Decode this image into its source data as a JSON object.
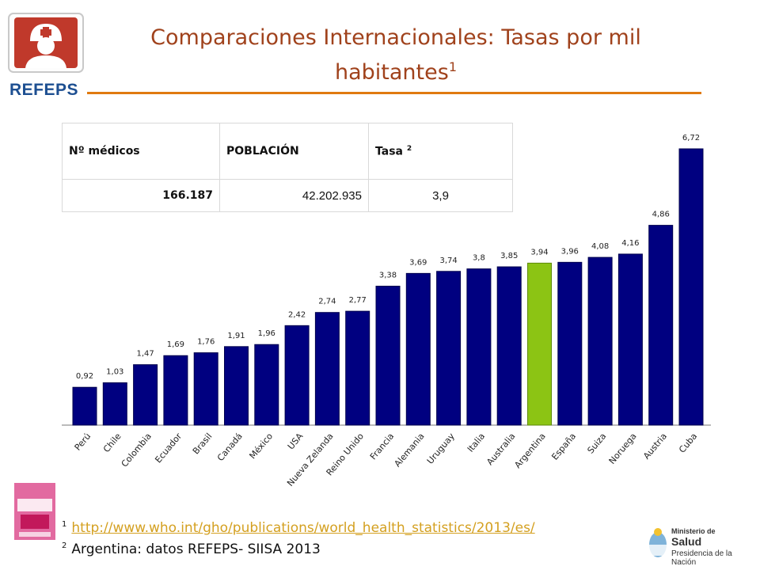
{
  "logo": {
    "text": "REFEPS"
  },
  "title": {
    "text": "Comparaciones Internacionales: Tasas por mil habitantes",
    "sup": "1"
  },
  "table": {
    "headers": [
      "Nº médicos",
      "POBLACIÓN",
      "Tasa"
    ],
    "header_sup": "2",
    "row": [
      "166.187",
      "42.202.935",
      "3,9"
    ]
  },
  "colors": {
    "bar": "#000080",
    "highlight": "#8cc414",
    "title": "#a0421c",
    "rule": "#e07a10"
  },
  "chart_data": {
    "type": "bar",
    "categories": [
      "Perú",
      "Chile",
      "Colombia",
      "Ecuador",
      "Brasil",
      "Canadá",
      "México",
      "USA",
      "Nueva Zelanda",
      "Reino Unido",
      "Francia",
      "Alemania",
      "Uruguay",
      "Italia",
      "Australia",
      "Argentina",
      "España",
      "Suiza",
      "Noruega",
      "Austria",
      "Cuba"
    ],
    "values": [
      0.92,
      1.03,
      1.47,
      1.69,
      1.76,
      1.91,
      1.96,
      2.42,
      2.74,
      2.77,
      3.38,
      3.69,
      3.74,
      3.8,
      3.85,
      3.94,
      3.96,
      4.08,
      4.16,
      4.86,
      6.72
    ],
    "labels": [
      "0,92",
      "1,03",
      "1,47",
      "1,69",
      "1,76",
      "1,91",
      "1,96",
      "2,42",
      "2,74",
      "2,77",
      "3,38",
      "3,69",
      "3,74",
      "3,8",
      "3,85",
      "3,94",
      "3,96",
      "4,08",
      "4,16",
      "4,86",
      "6,72"
    ],
    "highlight": "Argentina",
    "ylim": [
      0,
      6.72
    ],
    "grid": false
  },
  "footnotes": {
    "f1_sup": "1",
    "f1_link": "http://www.who.int/gho/publications/world_health_statistics/2013/es/",
    "f2_sup": "2",
    "f2_text": "Argentina: datos REFEPS- SIISA 2013"
  },
  "ministry": {
    "line1": "Ministerio de",
    "line2": "Salud",
    "line3": "Presidencia de la Nación"
  },
  "icons": [
    "nurse-logo-icon",
    "statistics-book-icon",
    "coat-of-arms-icon"
  ]
}
